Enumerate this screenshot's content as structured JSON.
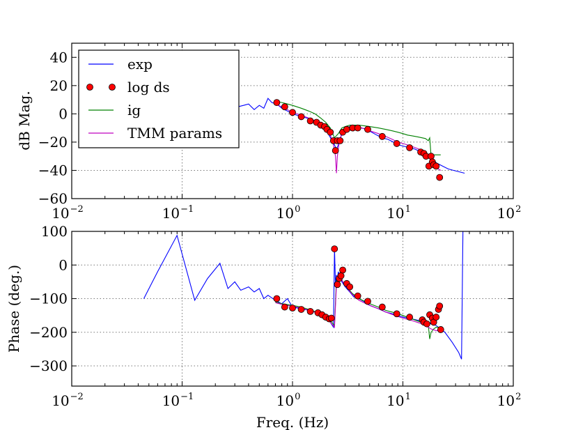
{
  "chart_data": [
    {
      "type": "line",
      "ylabel": "dB Mag.",
      "xscale": "log",
      "xlim": [
        0.01,
        100
      ],
      "ylim": [
        -60,
        50
      ],
      "yticks": [
        "40",
        "20",
        "0",
        "−20",
        "−40",
        "−60"
      ],
      "ytick_values": [
        40,
        20,
        0,
        -20,
        -40,
        -60
      ],
      "xticks": [
        {
          "base": "10",
          "exp": "−2",
          "value": 0.01
        },
        {
          "base": "10",
          "exp": "−1",
          "value": 0.1
        },
        {
          "base": "10",
          "exp": "0",
          "value": 1
        },
        {
          "base": "10",
          "exp": "1",
          "value": 10
        },
        {
          "base": "10",
          "exp": "2",
          "value": 100
        }
      ],
      "grid": true,
      "legend_position": "upper-left",
      "legend": [
        {
          "label": "exp",
          "color": "#0000ff",
          "style": "line"
        },
        {
          "label": "log ds",
          "color": "#ff0000",
          "style": "marker"
        },
        {
          "label": "ig",
          "color": "#008000",
          "style": "line"
        },
        {
          "label": "TMM params",
          "color": "#bf00bf",
          "style": "line"
        }
      ],
      "series": [
        {
          "name": "exp",
          "color": "#0000ff",
          "x": [
            0.32,
            0.36,
            0.4,
            0.45,
            0.5,
            0.55,
            0.6,
            0.65,
            0.72,
            0.8,
            0.9,
            1.0,
            1.1,
            1.2,
            1.35,
            1.5,
            1.65,
            1.8,
            1.95,
            2.1,
            2.25,
            2.4,
            2.5,
            2.6,
            2.75,
            2.9,
            3.1,
            3.4,
            3.8,
            4.2,
            4.7,
            5.2,
            5.8,
            6.5,
            7.3,
            8.2,
            9.2,
            10.3,
            11.5,
            12.9,
            14.5,
            16.2,
            18.2,
            20.4,
            22.9,
            25.7,
            28.8,
            32.3,
            36.2
          ],
          "y": [
            5,
            6,
            7,
            3,
            6,
            4,
            11,
            8,
            7,
            4,
            2,
            0,
            -1,
            -2,
            -3,
            -4,
            -6,
            -8,
            -10,
            -14,
            -18,
            -22,
            -25,
            -22,
            -16,
            -12,
            -10,
            -9,
            -9,
            -10,
            -11,
            -13,
            -15,
            -17,
            -18,
            -20,
            -22,
            -23,
            -24,
            -25,
            -27,
            -30,
            -32,
            -35,
            -37,
            -39,
            -40,
            -41,
            -42
          ]
        },
        {
          "name": "ig",
          "color": "#008000",
          "x": [
            0.7,
            0.8,
            0.9,
            1.0,
            1.2,
            1.4,
            1.6,
            1.8,
            2.0,
            2.2,
            2.4,
            2.6,
            2.8,
            3.0,
            3.3,
            3.6,
            4.0,
            4.5,
            5.0,
            6.0,
            7.0,
            8.0,
            9.0,
            10.0,
            11.0,
            12.0,
            13.0,
            14.0,
            15.0,
            16.0,
            17.0,
            17.5,
            18.0,
            19.0,
            20.0,
            22.0
          ],
          "y": [
            9,
            8,
            7,
            6,
            4,
            2,
            0,
            -3,
            -6,
            -10,
            -17,
            -14,
            -10,
            -9,
            -8,
            -8,
            -8,
            -8.5,
            -9,
            -10,
            -11,
            -12,
            -13,
            -14,
            -15,
            -15.5,
            -16,
            -16.5,
            -17,
            -17.5,
            -19,
            -17,
            -30,
            -29,
            -29,
            -29
          ]
        },
        {
          "name": "TMM params",
          "color": "#bf00bf",
          "x": [
            0.7,
            0.8,
            0.9,
            1.0,
            1.2,
            1.4,
            1.6,
            1.8,
            2.0,
            2.2,
            2.35,
            2.45,
            2.5,
            2.55,
            2.65,
            2.8,
            3.0,
            3.3,
            3.6,
            4.0,
            4.5,
            5.0,
            6.0,
            7.0,
            8.0,
            9.0,
            10.0,
            11.0,
            12.0,
            13.0,
            14.0,
            15.0,
            16.0,
            17.0,
            18.0,
            19.0,
            20.0,
            22.0
          ],
          "y": [
            7,
            5,
            3,
            1,
            -1,
            -3,
            -5,
            -7,
            -10,
            -15,
            -22,
            -30,
            -42,
            -30,
            -20,
            -13,
            -10,
            -9,
            -9,
            -9.5,
            -10.5,
            -12,
            -14,
            -16,
            -18,
            -20,
            -21,
            -22,
            -23,
            -24,
            -25,
            -26,
            -28,
            -30,
            -33,
            -36,
            -38,
            -40
          ]
        },
        {
          "name": "log ds",
          "color": "#ff0000",
          "marker": "circle",
          "x": [
            0.72,
            0.85,
            1.0,
            1.2,
            1.45,
            1.65,
            1.8,
            1.95,
            2.05,
            2.2,
            2.35,
            2.45,
            2.55,
            2.7,
            2.85,
            3.1,
            3.5,
            3.9,
            4.8,
            6.5,
            8.8,
            11.5,
            14.5,
            15.5,
            16.2,
            17.2,
            18.0,
            18.5,
            19.0,
            20.0,
            21.5
          ],
          "y": [
            8,
            5,
            1,
            -2,
            -5,
            -6,
            -8,
            -9,
            -11,
            -13,
            -19,
            -26,
            -19,
            -19,
            -13,
            -11,
            -10,
            -10,
            -11,
            -16,
            -21,
            -24,
            -27,
            -28,
            -30,
            -37,
            -30,
            -34,
            -36,
            -37,
            -45
          ]
        }
      ]
    },
    {
      "type": "line",
      "ylabel": "Phase (deg.)",
      "xlabel": "Freq. (Hz)",
      "xscale": "log",
      "xlim": [
        0.01,
        100
      ],
      "ylim": [
        -360,
        100
      ],
      "yticks": [
        "100",
        "0",
        "−100",
        "−200",
        "−300"
      ],
      "ytick_values": [
        100,
        0,
        -100,
        -200,
        -300
      ],
      "xticks": [
        {
          "base": "10",
          "exp": "−2",
          "value": 0.01
        },
        {
          "base": "10",
          "exp": "−1",
          "value": 0.1
        },
        {
          "base": "10",
          "exp": "0",
          "value": 1
        },
        {
          "base": "10",
          "exp": "1",
          "value": 10
        },
        {
          "base": "10",
          "exp": "2",
          "value": 100
        }
      ],
      "grid": true,
      "series": [
        {
          "name": "exp",
          "color": "#0000ff",
          "x": [
            0.045,
            0.06,
            0.09,
            0.13,
            0.17,
            0.22,
            0.26,
            0.3,
            0.34,
            0.4,
            0.45,
            0.5,
            0.55,
            0.6,
            0.7,
            0.8,
            0.9,
            1.0,
            1.2,
            1.4,
            1.6,
            1.8,
            2.0,
            2.2,
            2.35,
            2.4,
            2.45,
            2.5,
            2.55,
            2.6,
            2.7,
            2.8,
            3.0,
            3.3,
            3.6,
            4.0,
            4.5,
            5.0,
            6.0,
            7.0,
            8.0,
            9.0,
            10.0,
            12.0,
            14.0,
            16.0,
            18.0,
            20.0,
            24.0,
            28.0,
            32.0,
            34.0,
            35.0
          ],
          "y": [
            -100,
            -20,
            88,
            -105,
            -40,
            5,
            -70,
            -50,
            -75,
            -65,
            -80,
            -70,
            -100,
            -90,
            -105,
            -115,
            -100,
            -125,
            -130,
            -135,
            -140,
            -150,
            -160,
            -170,
            -185,
            50,
            -60,
            -30,
            -40,
            -20,
            -40,
            -50,
            -65,
            -80,
            -95,
            -100,
            -110,
            -120,
            -130,
            -140,
            -145,
            -150,
            -155,
            -160,
            -165,
            -170,
            -175,
            -180,
            -200,
            -230,
            -260,
            -280,
            100
          ]
        },
        {
          "name": "ig",
          "color": "#008000",
          "x": [
            0.7,
            0.8,
            1.0,
            1.2,
            1.5,
            1.8,
            2.0,
            2.2,
            2.4,
            2.5,
            2.6,
            2.8,
            3.0,
            3.5,
            4.0,
            5.0,
            6.0,
            7.0,
            8.0,
            9.0,
            10.0,
            12.0,
            14.0,
            16.0,
            17.0,
            17.5,
            18.0,
            19.0,
            20.0,
            22.0
          ],
          "y": [
            -110,
            -115,
            -120,
            -125,
            -135,
            -145,
            -155,
            -165,
            -180,
            -40,
            -30,
            -45,
            -60,
            -85,
            -100,
            -115,
            -125,
            -135,
            -140,
            -145,
            -150,
            -160,
            -168,
            -175,
            -180,
            -220,
            -200,
            -190,
            -185,
            -185
          ]
        },
        {
          "name": "TMM params",
          "color": "#bf00bf",
          "x": [
            0.7,
            0.8,
            1.0,
            1.2,
            1.5,
            1.8,
            2.0,
            2.2,
            2.4,
            2.5,
            2.6,
            2.8,
            3.0,
            3.5,
            4.0,
            5.0,
            6.0,
            7.0,
            8.0,
            9.0,
            10.0,
            12.0,
            14.0,
            16.0,
            18.0,
            20.0,
            22.0
          ],
          "y": [
            -112,
            -117,
            -123,
            -128,
            -137,
            -147,
            -158,
            -170,
            -185,
            -60,
            -35,
            -45,
            -62,
            -88,
            -105,
            -120,
            -130,
            -140,
            -147,
            -153,
            -158,
            -165,
            -172,
            -180,
            -190,
            -195,
            -195
          ]
        },
        {
          "name": "log ds",
          "color": "#ff0000",
          "marker": "circle",
          "x": [
            0.72,
            0.85,
            1.0,
            1.2,
            1.45,
            1.7,
            1.85,
            2.0,
            2.15,
            2.25,
            2.4,
            2.55,
            2.65,
            2.75,
            2.85,
            3.1,
            3.3,
            3.9,
            4.8,
            6.5,
            8.8,
            11.5,
            15.0,
            15.5,
            16.5,
            17.5,
            18.5,
            19.0,
            20.0,
            21.0,
            21.5,
            22.0
          ],
          "y": [
            -100,
            -125,
            -128,
            -132,
            -138,
            -142,
            -148,
            -155,
            -160,
            -158,
            48,
            -58,
            -40,
            -32,
            -15,
            -55,
            -65,
            -92,
            -108,
            -125,
            -145,
            -155,
            -163,
            -170,
            -175,
            -148,
            -158,
            -170,
            -155,
            -132,
            -122,
            -192
          ]
        }
      ]
    }
  ]
}
